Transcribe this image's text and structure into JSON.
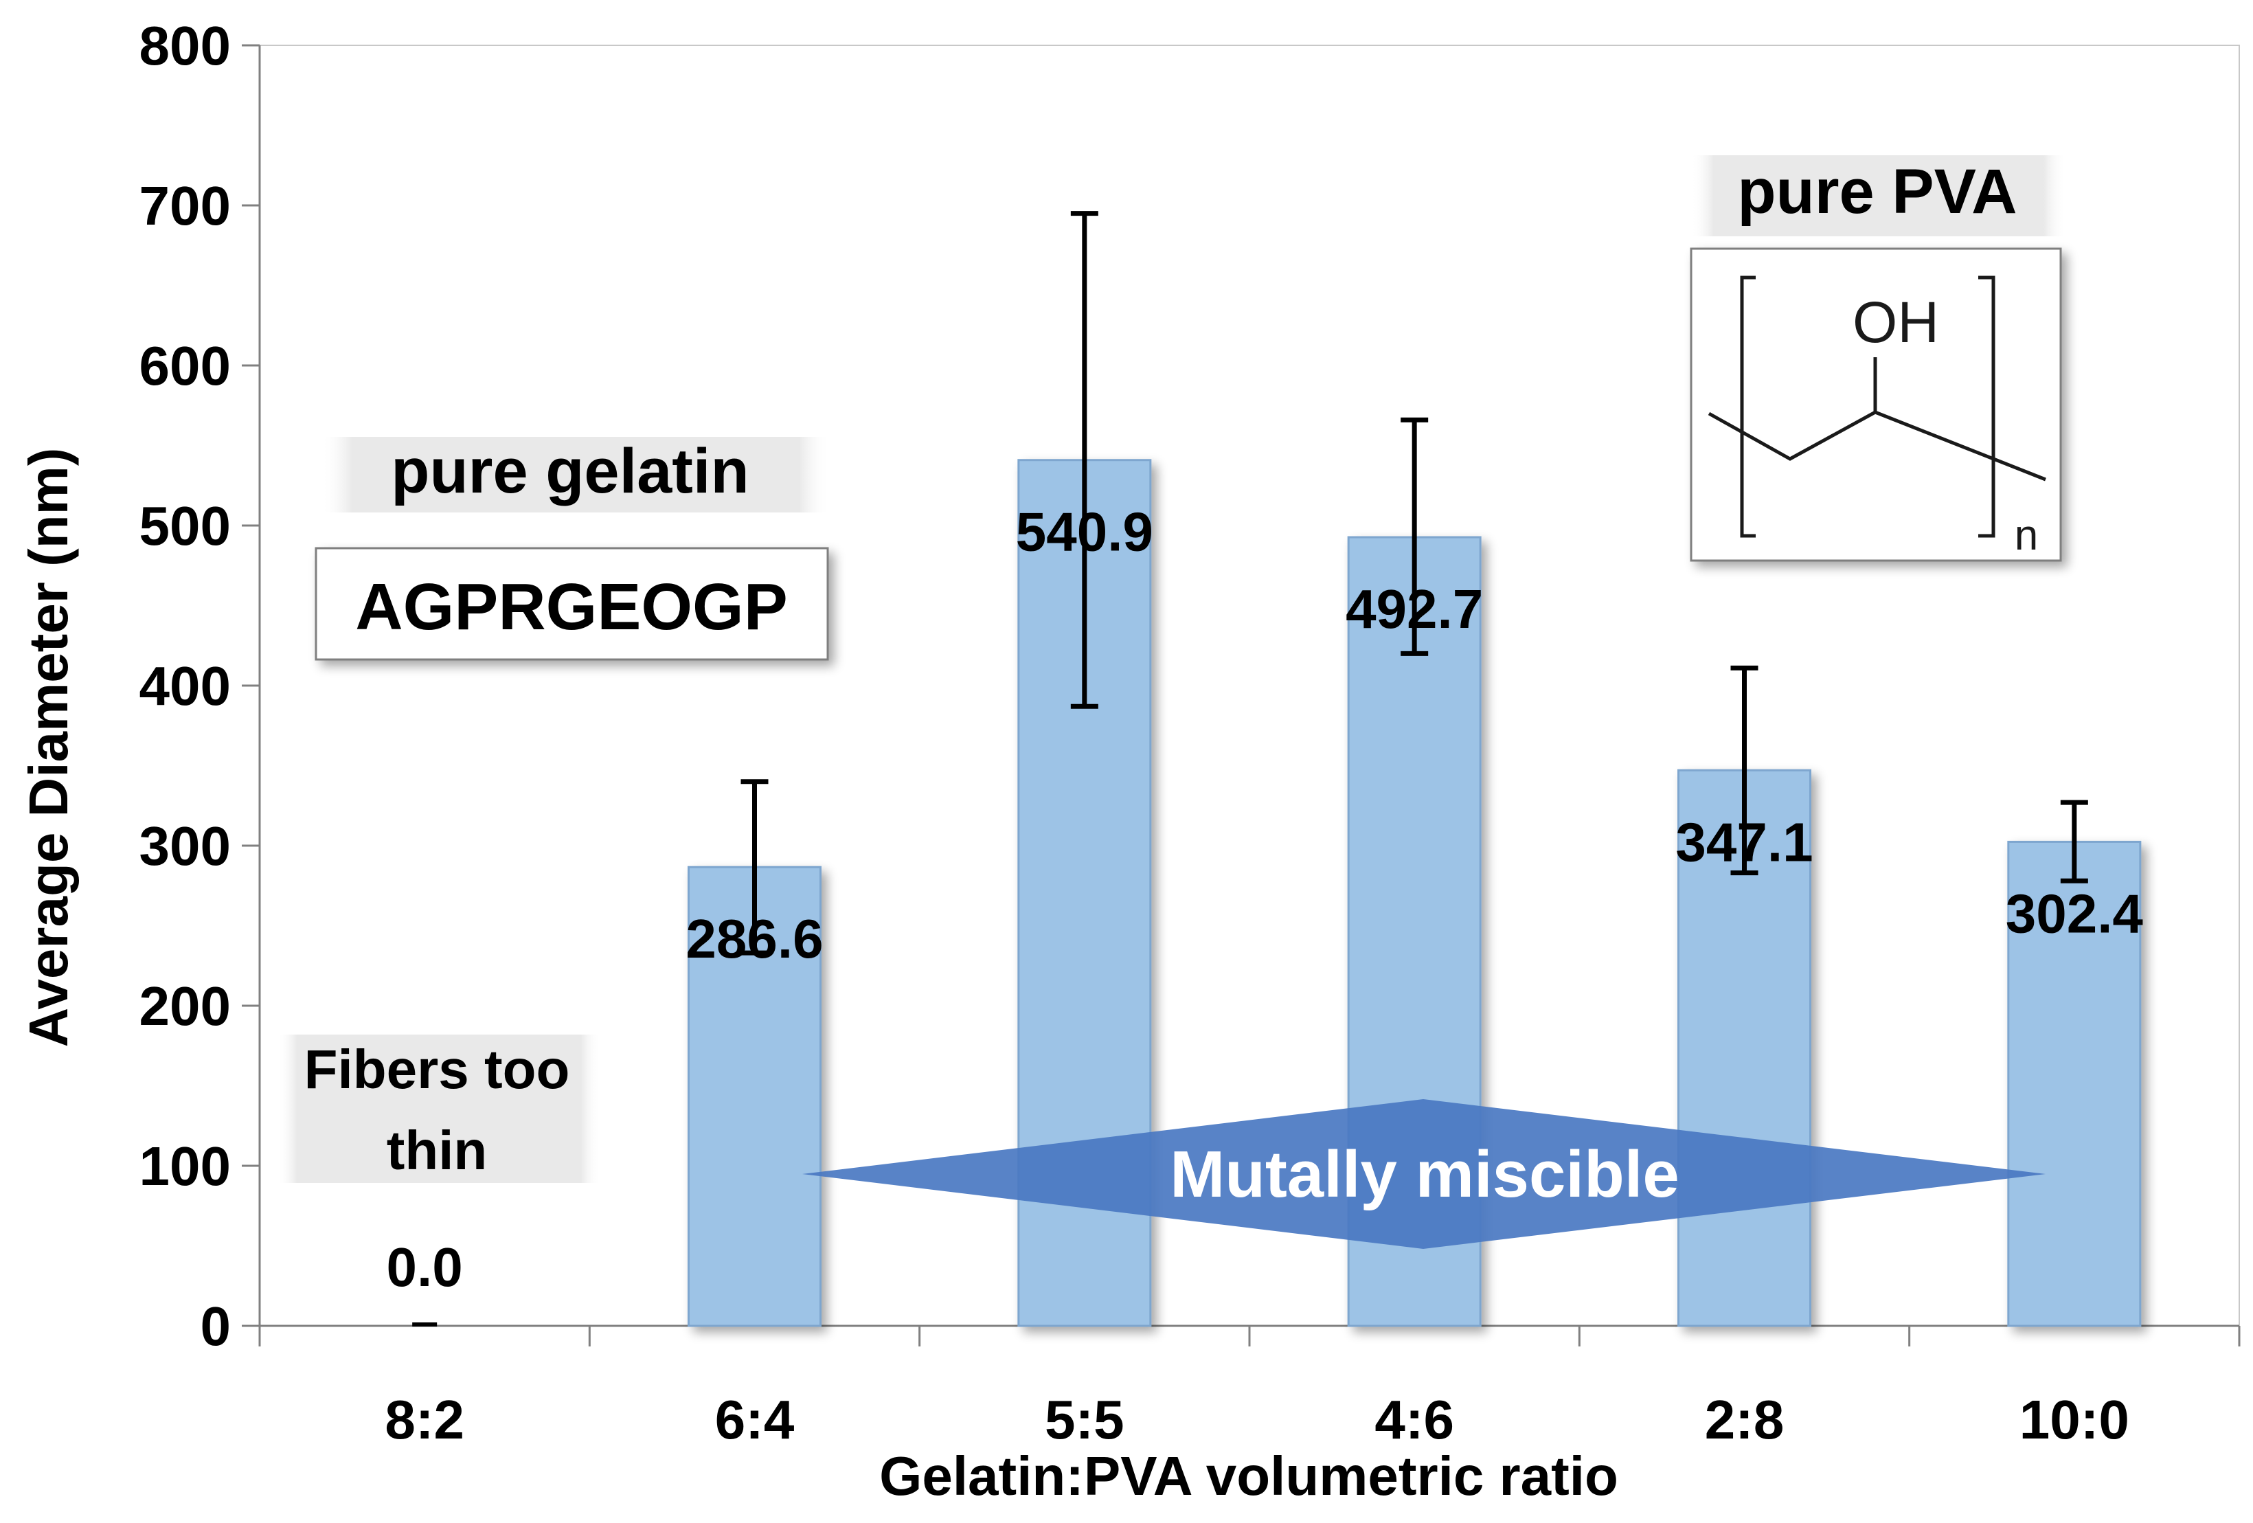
{
  "chart_data": {
    "type": "bar",
    "title": "",
    "xlabel": "Gelatin:PVA volumetric ratio",
    "ylabel": "Average Diameter (nm)",
    "ylim": [
      0,
      800
    ],
    "yticks": [
      0,
      100,
      200,
      300,
      400,
      500,
      600,
      700,
      800
    ],
    "grid": false,
    "categories": [
      "8:2",
      "6:4",
      "5:5",
      "4:6",
      "2:8",
      "10:0"
    ],
    "values": [
      0.0,
      286.6,
      540.9,
      492.7,
      347.1,
      302.4
    ],
    "value_labels": [
      "0.0",
      "286.6",
      "540.9",
      "492.7",
      "347.1",
      "302.4"
    ],
    "error_bars": [
      {
        "low": 0,
        "high": 0
      },
      {
        "low": 233,
        "high": 340
      },
      {
        "low": 387,
        "high": 695
      },
      {
        "low": 420,
        "high": 566
      },
      {
        "low": 283,
        "high": 411
      },
      {
        "low": 278,
        "high": 327
      }
    ],
    "colors": {
      "bar": "#9dc3e6",
      "bar_edge": "#7ea6cf",
      "arrow": "#4a78c2",
      "error": "#000000"
    },
    "annotations": {
      "pure_gelatin": "pure gelatin",
      "sequence": "AGPRGEOGP",
      "pure_pva": "pure PVA",
      "fibers_line1": "Fibers too",
      "fibers_line2": "thin",
      "miscible": "Mutally miscible",
      "oh_label": "OH",
      "n_label": "n"
    }
  }
}
